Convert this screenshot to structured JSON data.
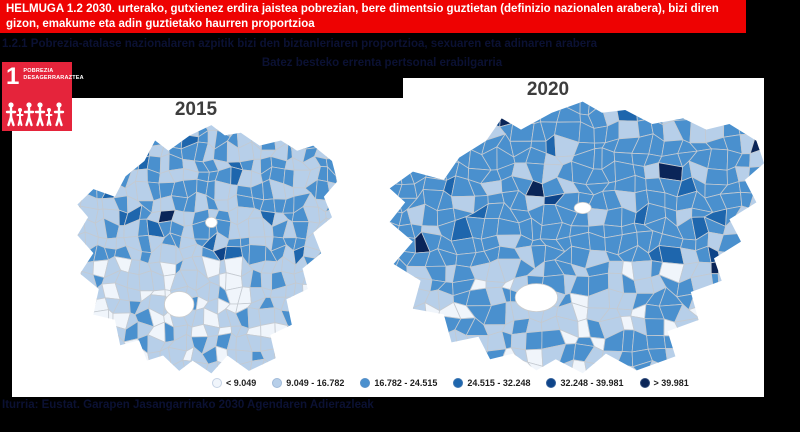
{
  "banner": {
    "text": "HELMUGA 1.2 2030. urterako, gutxienez erdira jaistea pobrezian, bere dimentsio guztietan (definizio nazionalen arabera), bizi diren gizon, emakume eta adin guztietako haurren proportzioa"
  },
  "indicator_line": "1.2.1 Pobrezia-atalase nazionalaren azpitik bizi den biztanleriaren proportzioa, sexuaren eta adinaren arabera",
  "subtitle": "Batez besteko errenta pertsonal erabilgarria",
  "sdg_icon": {
    "number": "1",
    "label_line1": "POBREZIA",
    "label_line2": "DESAGERRARAZTEA",
    "color": "#e5243b"
  },
  "maps": [
    {
      "year": "2015"
    },
    {
      "year": "2020"
    }
  ],
  "legend": {
    "items": [
      {
        "label": "< 9.049",
        "color": "#f0f5fb"
      },
      {
        "label": "9.049 - 16.782",
        "color": "#b7cfe9"
      },
      {
        "label": "16.782 - 24.515",
        "color": "#4a90ce"
      },
      {
        "label": "24.515 - 32.248",
        "color": "#1e66ad"
      },
      {
        "label": "32.248 - 39.981",
        "color": "#0e4489"
      },
      {
        "label": "> 39.981",
        "color": "#0a2558"
      }
    ]
  },
  "source": "Iturria: Eustat. Garapen Jasangarrirako 2030 Agendaren Adierazleak",
  "colors": {
    "banner_red": "#ee0202",
    "sdg_red": "#e5243b",
    "page_background": "#000000",
    "panel_background": "#ffffff",
    "municipality_border": "#c4cad1",
    "dark_text_on_black": "#0b1133"
  },
  "chart_data": {
    "type": "heatmap",
    "subtype": "choropleth-maps",
    "region": "Euskadi / Basque Country municipalities",
    "title": "Batez besteko errenta pertsonal erabilgarria",
    "legend_position": "bottom",
    "legend_breaks": [
      "< 9.049",
      "9.049 - 16.782",
      "16.782 - 24.515",
      "24.515 - 32.248",
      "32.248 - 39.981",
      "> 39.981"
    ],
    "legend_colors": [
      "#f0f5fb",
      "#b7cfe9",
      "#4a90ce",
      "#1e66ad",
      "#0e4489",
      "#0a2558"
    ],
    "series": [
      {
        "name": "2015",
        "summary": "north/center municipalities mixed light and medium blue (9.049-24.515); south (Araba) mostly light (<16.782) with some near-white (<9.049); isolated dark navy municipalities (>32.248) on the coast and centre"
      },
      {
        "name": "2020",
        "summary": "most municipalities medium blue (16.782-24.515); south lighter (9.049-16.782) with some near-white; several dark navy municipalities (>32.248) on coast, centre and east"
      }
    ]
  }
}
